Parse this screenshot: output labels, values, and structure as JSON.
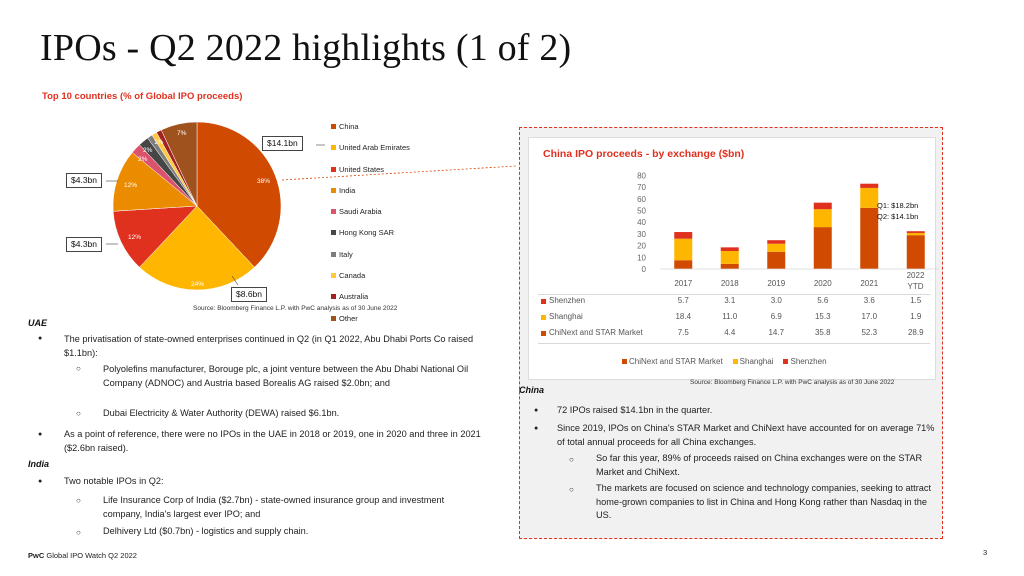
{
  "title": "IPOs - Q2 2022 highlights (1 of 2)",
  "subtitle": "Top 10 countries (% of Global IPO proceeds)",
  "pie": {
    "slices": [
      {
        "name": "China",
        "value": 38,
        "color": "#d04a02"
      },
      {
        "name": "United Arab Emirates",
        "value": 24,
        "color": "#ffb600"
      },
      {
        "name": "United States",
        "value": 12,
        "color": "#e0301e"
      },
      {
        "name": "India",
        "value": 12,
        "color": "#eb8c00"
      },
      {
        "name": "Saudi Arabia",
        "value": 2,
        "color": "#db536a"
      },
      {
        "name": "Hong Kong SAR",
        "value": 2,
        "color": "#464646"
      },
      {
        "name": "Italy",
        "value": 1,
        "color": "#7d7d7d"
      },
      {
        "name": "Canada",
        "value": 1,
        "color": "#ffc83d"
      },
      {
        "name": "Australia",
        "value": 1,
        "color": "#a32020"
      },
      {
        "name": "Other",
        "value": 7,
        "color": "#a0521e"
      }
    ],
    "pct_labels": {
      "china": "38%",
      "uae": "24%",
      "us": "12%",
      "india": "12%",
      "saudi": "2%",
      "hk": "2%",
      "other": "7%",
      "small": "1%"
    },
    "callouts": {
      "china": "$14.1bn",
      "india": "$4.3bn",
      "us": "$4.3bn",
      "uae": "$8.6bn"
    },
    "legend": [
      "China",
      "United Arab Emirates",
      "United States",
      "India",
      "Saudi Arabia",
      "Hong Kong SAR",
      "Italy",
      "Canada",
      "Australia",
      "Other"
    ],
    "source": "Source: Bloomberg Finance L.P. with PwC analysis as of 30 June 2022"
  },
  "uae": {
    "heading": "UAE",
    "b1": "The privatisation of state-owned enterprises continued in Q2 (in Q1 2022, Abu Dhabi Ports Co raised $1.1bn):",
    "s1": "Polyolefins manufacturer, Borouge plc, a joint venture between the Abu Dhabi National Oil Company (ADNOC) and Austria based Borealis AG raised $2.0bn; and",
    "s2": "Dubai Electricity & Water Authority (DEWA) raised $6.1bn.",
    "b2": "As a point of reference, there were no IPOs in the UAE in 2018 or 2019, one in 2020 and three in 2021 ($2.6bn raised)."
  },
  "india": {
    "heading": "India",
    "b1": "Two notable IPOs in Q2:",
    "s1": "Life Insurance Corp of India ($2.7bn) - state-owned insurance group and investment company, India's largest ever IPO; and",
    "s2": "Delhivery Ltd ($0.7bn) - logistics and supply chain."
  },
  "chart_data": {
    "type": "bar",
    "title": "China IPO proceeds - by exchange ($bn)",
    "categories": [
      "2017",
      "2018",
      "2019",
      "2020",
      "2021",
      "2022 YTD"
    ],
    "series": [
      {
        "name": "Shenzhen",
        "values": [
          5.7,
          3.1,
          3.0,
          5.6,
          3.6,
          1.5
        ],
        "color": "#e0301e"
      },
      {
        "name": "Shanghai",
        "values": [
          18.4,
          11.0,
          6.9,
          15.3,
          17.0,
          1.9
        ],
        "color": "#ffb600"
      },
      {
        "name": "ChiNext and STAR Market",
        "values": [
          7.5,
          4.4,
          14.7,
          35.8,
          52.3,
          28.9
        ],
        "color": "#d04a02"
      }
    ],
    "yticks": [
      "80",
      "70",
      "60",
      "50",
      "40",
      "30",
      "20",
      "10",
      "0"
    ],
    "ylim": [
      0,
      80
    ],
    "note_q1": "Q1: $18.2bn",
    "note_q2": "Q2: $14.1bn",
    "legend": [
      "ChiNext and STAR Market",
      "Shanghai",
      "Shenzhen"
    ],
    "source": "Source: Bloomberg Finance L.P. with PwC analysis as of 30 June 2022"
  },
  "china": {
    "heading": "China",
    "b1": "72 IPOs raised $14.1bn in the quarter.",
    "b2": "Since 2019, IPOs on China's STAR Market and ChiNext have accounted for on average 71% of total annual proceeds for all China exchanges.",
    "s1": "So far this year, 89% of proceeds raised on China exchanges were on the STAR Market and ChiNext.",
    "s2": "The markets are focused on science and technology companies, seeking to attract home-grown companies to list in China and Hong Kong rather than Nasdaq in the US."
  },
  "footer": {
    "brand": "PwC",
    "text": "Global IPO Watch Q2 2022",
    "page": "3"
  },
  "glyphs": {
    "bullet": "●",
    "sub_bullet": "○"
  }
}
